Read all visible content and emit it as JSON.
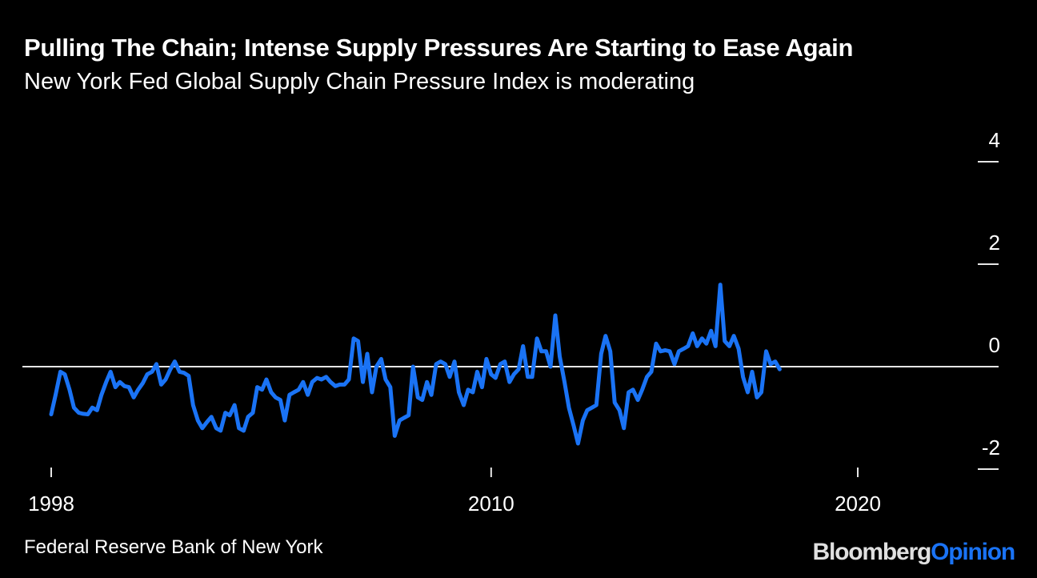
{
  "header": {
    "title": "Pulling The Chain; Intense Supply Pressures Are Starting to Ease Again",
    "subtitle": "New York Fed Global Supply Chain Pressure Index is moderating"
  },
  "footer": {
    "source": "Federal Reserve Bank of New York",
    "logo_brand": "Bloomberg",
    "logo_section": "Opinion"
  },
  "colors": {
    "background": "#000000",
    "line": "#1a73f5",
    "axis": "#e6e6e6",
    "text": "#ffffff"
  },
  "chart_data": {
    "type": "line",
    "title": "Pulling The Chain; Intense Supply Pressures Are Starting to Ease Again",
    "subtitle": "New York Fed Global Supply Chain Pressure Index is moderating",
    "xlabel": "",
    "ylabel": "",
    "xlim": [
      1998,
      2022.6
    ],
    "ylim": [
      -2,
      4
    ],
    "x_ticks": [
      1998,
      2010,
      2020
    ],
    "x_tick_labels": [
      "1998",
      "2010",
      "2020"
    ],
    "y_ticks": [
      -2,
      0,
      2,
      4
    ],
    "y_tick_labels": [
      "-2",
      "0",
      "2",
      "4"
    ],
    "y_axis_side": "right",
    "zero_line": true,
    "grid": false,
    "legend": "none",
    "series": [
      {
        "name": "Global Supply Chain Pressure Index",
        "points": [
          [
            1998.0,
            -0.93
          ],
          [
            1998.12,
            -0.55
          ],
          [
            1998.25,
            -0.1
          ],
          [
            1998.37,
            -0.15
          ],
          [
            1998.5,
            -0.45
          ],
          [
            1998.62,
            -0.8
          ],
          [
            1998.75,
            -0.9
          ],
          [
            1998.87,
            -0.92
          ],
          [
            1999.0,
            -0.93
          ],
          [
            1999.12,
            -0.8
          ],
          [
            1999.25,
            -0.85
          ],
          [
            1999.37,
            -0.55
          ],
          [
            1999.5,
            -0.3
          ],
          [
            1999.62,
            -0.1
          ],
          [
            1999.75,
            -0.4
          ],
          [
            1999.87,
            -0.3
          ],
          [
            2000.0,
            -0.38
          ],
          [
            2000.12,
            -0.4
          ],
          [
            2000.25,
            -0.6
          ],
          [
            2000.37,
            -0.45
          ],
          [
            2000.5,
            -0.32
          ],
          [
            2000.62,
            -0.15
          ],
          [
            2000.75,
            -0.1
          ],
          [
            2000.87,
            0.05
          ],
          [
            2001.0,
            -0.35
          ],
          [
            2001.12,
            -0.25
          ],
          [
            2001.25,
            -0.05
          ],
          [
            2001.37,
            0.1
          ],
          [
            2001.5,
            -0.1
          ],
          [
            2001.62,
            -0.12
          ],
          [
            2001.75,
            -0.18
          ],
          [
            2001.87,
            -0.75
          ],
          [
            2002.0,
            -1.05
          ],
          [
            2002.12,
            -1.2
          ],
          [
            2002.25,
            -1.08
          ],
          [
            2002.37,
            -0.98
          ],
          [
            2002.5,
            -1.2
          ],
          [
            2002.62,
            -1.25
          ],
          [
            2002.75,
            -0.9
          ],
          [
            2002.87,
            -0.95
          ],
          [
            2003.0,
            -0.75
          ],
          [
            2003.12,
            -1.2
          ],
          [
            2003.25,
            -1.25
          ],
          [
            2003.37,
            -0.98
          ],
          [
            2003.5,
            -0.9
          ],
          [
            2003.62,
            -0.4
          ],
          [
            2003.75,
            -0.45
          ],
          [
            2003.87,
            -0.25
          ],
          [
            2004.0,
            -0.5
          ],
          [
            2004.12,
            -0.6
          ],
          [
            2004.25,
            -0.65
          ],
          [
            2004.37,
            -1.05
          ],
          [
            2004.5,
            -0.55
          ],
          [
            2004.62,
            -0.5
          ],
          [
            2004.75,
            -0.45
          ],
          [
            2004.87,
            -0.3
          ],
          [
            2005.0,
            -0.55
          ],
          [
            2005.12,
            -0.3
          ],
          [
            2005.25,
            -0.22
          ],
          [
            2005.37,
            -0.25
          ],
          [
            2005.5,
            -0.2
          ],
          [
            2005.62,
            -0.3
          ],
          [
            2005.75,
            -0.38
          ],
          [
            2005.87,
            -0.35
          ],
          [
            2006.0,
            -0.35
          ],
          [
            2006.12,
            -0.25
          ],
          [
            2006.25,
            0.55
          ],
          [
            2006.37,
            0.5
          ],
          [
            2006.5,
            -0.3
          ],
          [
            2006.62,
            0.25
          ],
          [
            2006.75,
            -0.5
          ],
          [
            2006.87,
            0.0
          ],
          [
            2007.0,
            0.15
          ],
          [
            2007.12,
            -0.25
          ],
          [
            2007.25,
            -0.4
          ],
          [
            2007.37,
            -1.35
          ],
          [
            2007.5,
            -1.05
          ],
          [
            2007.62,
            -1.0
          ],
          [
            2007.75,
            -0.95
          ],
          [
            2007.87,
            0.0
          ],
          [
            2008.0,
            -0.6
          ],
          [
            2008.12,
            -0.65
          ],
          [
            2008.25,
            -0.3
          ],
          [
            2008.37,
            -0.55
          ],
          [
            2008.5,
            0.05
          ],
          [
            2008.62,
            0.1
          ],
          [
            2008.75,
            0.05
          ],
          [
            2008.87,
            -0.2
          ],
          [
            2009.0,
            0.1
          ],
          [
            2009.12,
            -0.5
          ],
          [
            2009.25,
            -0.75
          ],
          [
            2009.37,
            -0.45
          ],
          [
            2009.5,
            -0.5
          ],
          [
            2009.62,
            -0.1
          ],
          [
            2009.75,
            -0.4
          ],
          [
            2009.87,
            0.15
          ],
          [
            2010.0,
            -0.15
          ],
          [
            2010.12,
            -0.22
          ],
          [
            2010.25,
            0.05
          ],
          [
            2010.37,
            0.1
          ],
          [
            2010.5,
            -0.3
          ],
          [
            2010.62,
            -0.15
          ],
          [
            2010.75,
            -0.05
          ],
          [
            2010.87,
            0.4
          ],
          [
            2011.0,
            -0.2
          ],
          [
            2011.12,
            -0.2
          ],
          [
            2011.25,
            0.55
          ],
          [
            2011.37,
            0.3
          ],
          [
            2011.5,
            0.3
          ],
          [
            2011.62,
            0.0
          ],
          [
            2011.75,
            1.0
          ],
          [
            2011.87,
            0.2
          ],
          [
            2012.0,
            -0.3
          ],
          [
            2012.12,
            -0.8
          ],
          [
            2012.25,
            -1.15
          ],
          [
            2012.37,
            -1.5
          ],
          [
            2012.5,
            -1.05
          ],
          [
            2012.62,
            -0.85
          ],
          [
            2012.75,
            -0.8
          ],
          [
            2012.87,
            -0.75
          ],
          [
            2013.0,
            0.25
          ],
          [
            2013.12,
            0.6
          ],
          [
            2013.25,
            0.3
          ],
          [
            2013.37,
            -0.7
          ],
          [
            2013.5,
            -0.85
          ],
          [
            2013.62,
            -1.2
          ],
          [
            2013.75,
            -0.5
          ],
          [
            2013.87,
            -0.45
          ],
          [
            2014.0,
            -0.65
          ],
          [
            2014.12,
            -0.45
          ],
          [
            2014.25,
            -0.2
          ],
          [
            2014.37,
            -0.1
          ],
          [
            2014.5,
            0.45
          ],
          [
            2014.62,
            0.3
          ],
          [
            2014.75,
            0.32
          ],
          [
            2014.87,
            0.3
          ],
          [
            2015.0,
            0.05
          ],
          [
            2015.12,
            0.3
          ],
          [
            2015.25,
            0.35
          ],
          [
            2015.37,
            0.4
          ],
          [
            2015.5,
            0.65
          ],
          [
            2015.62,
            0.4
          ],
          [
            2015.75,
            0.55
          ],
          [
            2015.87,
            0.45
          ],
          [
            2016.0,
            0.7
          ],
          [
            2016.12,
            0.4
          ],
          [
            2016.25,
            1.6
          ],
          [
            2016.37,
            0.5
          ],
          [
            2016.5,
            0.4
          ],
          [
            2016.62,
            0.6
          ],
          [
            2016.75,
            0.35
          ],
          [
            2016.87,
            -0.2
          ],
          [
            2017.0,
            -0.5
          ],
          [
            2017.12,
            -0.1
          ],
          [
            2017.25,
            -0.6
          ],
          [
            2017.37,
            -0.5
          ],
          [
            2017.5,
            0.3
          ],
          [
            2017.62,
            0.05
          ],
          [
            2017.75,
            0.1
          ],
          [
            2017.87,
            -0.05
          ]
        ]
      }
    ]
  }
}
